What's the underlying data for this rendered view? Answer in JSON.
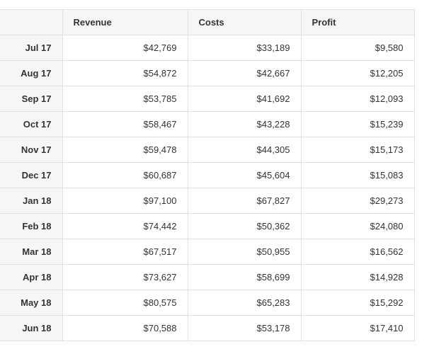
{
  "table": {
    "headers": [
      "",
      "Revenue",
      "Costs",
      "Profit"
    ],
    "rows": [
      {
        "month": "Jul 17",
        "revenue": "$42,769",
        "costs": "$33,189",
        "profit": "$9,580"
      },
      {
        "month": "Aug 17",
        "revenue": "$54,872",
        "costs": "$42,667",
        "profit": "$12,205"
      },
      {
        "month": "Sep 17",
        "revenue": "$53,785",
        "costs": "$41,692",
        "profit": "$12,093"
      },
      {
        "month": "Oct 17",
        "revenue": "$58,467",
        "costs": "$43,228",
        "profit": "$15,239"
      },
      {
        "month": "Nov 17",
        "revenue": "$59,478",
        "costs": "$44,305",
        "profit": "$15,173"
      },
      {
        "month": "Dec 17",
        "revenue": "$60,687",
        "costs": "$45,604",
        "profit": "$15,083"
      },
      {
        "month": "Jan 18",
        "revenue": "$97,100",
        "costs": "$67,827",
        "profit": "$29,273"
      },
      {
        "month": "Feb 18",
        "revenue": "$74,442",
        "costs": "$50,362",
        "profit": "$24,080"
      },
      {
        "month": "Mar 18",
        "revenue": "$67,517",
        "costs": "$50,955",
        "profit": "$16,562"
      },
      {
        "month": "Apr 18",
        "revenue": "$73,627",
        "costs": "$58,699",
        "profit": "$14,928"
      },
      {
        "month": "May 18",
        "revenue": "$80,575",
        "costs": "$65,283",
        "profit": "$15,292"
      },
      {
        "month": "Jun 18",
        "revenue": "$70,588",
        "costs": "$53,178",
        "profit": "$17,410"
      }
    ]
  },
  "colors": {
    "header_bg": "#f6f6f6",
    "border": "#e1e1e1",
    "text": "#333333"
  }
}
